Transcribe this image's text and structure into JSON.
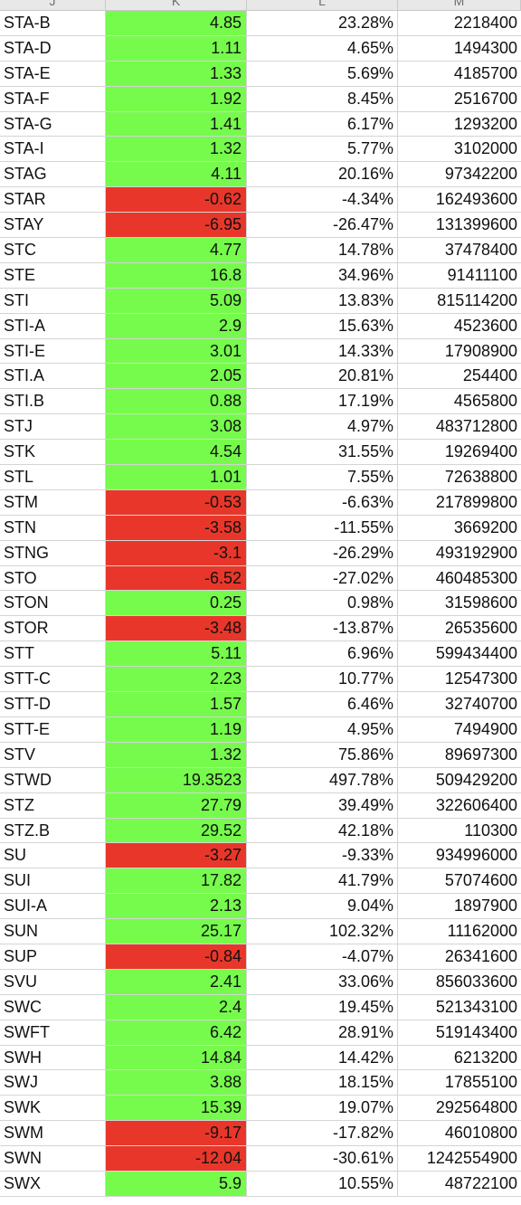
{
  "columns": [
    "J",
    "K",
    "L",
    "M"
  ],
  "rows": [
    {
      "ticker": "STA-B",
      "change": "4.85",
      "pct": "23.28%",
      "volume": "2218400",
      "status": "positive"
    },
    {
      "ticker": "STA-D",
      "change": "1.11",
      "pct": "4.65%",
      "volume": "1494300",
      "status": "positive"
    },
    {
      "ticker": "STA-E",
      "change": "1.33",
      "pct": "5.69%",
      "volume": "4185700",
      "status": "positive"
    },
    {
      "ticker": "STA-F",
      "change": "1.92",
      "pct": "8.45%",
      "volume": "2516700",
      "status": "positive"
    },
    {
      "ticker": "STA-G",
      "change": "1.41",
      "pct": "6.17%",
      "volume": "1293200",
      "status": "positive"
    },
    {
      "ticker": "STA-I",
      "change": "1.32",
      "pct": "5.77%",
      "volume": "3102000",
      "status": "positive"
    },
    {
      "ticker": "STAG",
      "change": "4.11",
      "pct": "20.16%",
      "volume": "97342200",
      "status": "positive"
    },
    {
      "ticker": "STAR",
      "change": "-0.62",
      "pct": "-4.34%",
      "volume": "162493600",
      "status": "negative"
    },
    {
      "ticker": "STAY",
      "change": "-6.95",
      "pct": "-26.47%",
      "volume": "131399600",
      "status": "negative"
    },
    {
      "ticker": "STC",
      "change": "4.77",
      "pct": "14.78%",
      "volume": "37478400",
      "status": "positive"
    },
    {
      "ticker": "STE",
      "change": "16.8",
      "pct": "34.96%",
      "volume": "91411100",
      "status": "positive"
    },
    {
      "ticker": "STI",
      "change": "5.09",
      "pct": "13.83%",
      "volume": "815114200",
      "status": "positive"
    },
    {
      "ticker": "STI-A",
      "change": "2.9",
      "pct": "15.63%",
      "volume": "4523600",
      "status": "positive"
    },
    {
      "ticker": "STI-E",
      "change": "3.01",
      "pct": "14.33%",
      "volume": "17908900",
      "status": "positive"
    },
    {
      "ticker": "STI.A",
      "change": "2.05",
      "pct": "20.81%",
      "volume": "254400",
      "status": "positive"
    },
    {
      "ticker": "STI.B",
      "change": "0.88",
      "pct": "17.19%",
      "volume": "4565800",
      "status": "positive"
    },
    {
      "ticker": "STJ",
      "change": "3.08",
      "pct": "4.97%",
      "volume": "483712800",
      "status": "positive"
    },
    {
      "ticker": "STK",
      "change": "4.54",
      "pct": "31.55%",
      "volume": "19269400",
      "status": "positive"
    },
    {
      "ticker": "STL",
      "change": "1.01",
      "pct": "7.55%",
      "volume": "72638800",
      "status": "positive"
    },
    {
      "ticker": "STM",
      "change": "-0.53",
      "pct": "-6.63%",
      "volume": "217899800",
      "status": "negative"
    },
    {
      "ticker": "STN",
      "change": "-3.58",
      "pct": "-11.55%",
      "volume": "3669200",
      "status": "negative"
    },
    {
      "ticker": "STNG",
      "change": "-3.1",
      "pct": "-26.29%",
      "volume": "493192900",
      "status": "negative"
    },
    {
      "ticker": "STO",
      "change": "-6.52",
      "pct": "-27.02%",
      "volume": "460485300",
      "status": "negative"
    },
    {
      "ticker": "STON",
      "change": "0.25",
      "pct": "0.98%",
      "volume": "31598600",
      "status": "positive"
    },
    {
      "ticker": "STOR",
      "change": "-3.48",
      "pct": "-13.87%",
      "volume": "26535600",
      "status": "negative"
    },
    {
      "ticker": "STT",
      "change": "5.11",
      "pct": "6.96%",
      "volume": "599434400",
      "status": "positive"
    },
    {
      "ticker": "STT-C",
      "change": "2.23",
      "pct": "10.77%",
      "volume": "12547300",
      "status": "positive"
    },
    {
      "ticker": "STT-D",
      "change": "1.57",
      "pct": "6.46%",
      "volume": "32740700",
      "status": "positive"
    },
    {
      "ticker": "STT-E",
      "change": "1.19",
      "pct": "4.95%",
      "volume": "7494900",
      "status": "positive"
    },
    {
      "ticker": "STV",
      "change": "1.32",
      "pct": "75.86%",
      "volume": "89697300",
      "status": "positive"
    },
    {
      "ticker": "STWD",
      "change": "19.3523",
      "pct": "497.78%",
      "volume": "509429200",
      "status": "positive"
    },
    {
      "ticker": "STZ",
      "change": "27.79",
      "pct": "39.49%",
      "volume": "322606400",
      "status": "positive"
    },
    {
      "ticker": "STZ.B",
      "change": "29.52",
      "pct": "42.18%",
      "volume": "110300",
      "status": "positive"
    },
    {
      "ticker": "SU",
      "change": "-3.27",
      "pct": "-9.33%",
      "volume": "934996000",
      "status": "negative"
    },
    {
      "ticker": "SUI",
      "change": "17.82",
      "pct": "41.79%",
      "volume": "57074600",
      "status": "positive"
    },
    {
      "ticker": "SUI-A",
      "change": "2.13",
      "pct": "9.04%",
      "volume": "1897900",
      "status": "positive"
    },
    {
      "ticker": "SUN",
      "change": "25.17",
      "pct": "102.32%",
      "volume": "11162000",
      "status": "positive"
    },
    {
      "ticker": "SUP",
      "change": "-0.84",
      "pct": "-4.07%",
      "volume": "26341600",
      "status": "negative"
    },
    {
      "ticker": "SVU",
      "change": "2.41",
      "pct": "33.06%",
      "volume": "856033600",
      "status": "positive"
    },
    {
      "ticker": "SWC",
      "change": "2.4",
      "pct": "19.45%",
      "volume": "521343100",
      "status": "positive"
    },
    {
      "ticker": "SWFT",
      "change": "6.42",
      "pct": "28.91%",
      "volume": "519143400",
      "status": "positive"
    },
    {
      "ticker": "SWH",
      "change": "14.84",
      "pct": "14.42%",
      "volume": "6213200",
      "status": "positive"
    },
    {
      "ticker": "SWJ",
      "change": "3.88",
      "pct": "18.15%",
      "volume": "17855100",
      "status": "positive"
    },
    {
      "ticker": "SWK",
      "change": "15.39",
      "pct": "19.07%",
      "volume": "292564800",
      "status": "positive"
    },
    {
      "ticker": "SWM",
      "change": "-9.17",
      "pct": "-17.82%",
      "volume": "46010800",
      "status": "negative"
    },
    {
      "ticker": "SWN",
      "change": "-12.04",
      "pct": "-30.61%",
      "volume": "1242554900",
      "status": "negative"
    },
    {
      "ticker": "SWX",
      "change": "5.9",
      "pct": "10.55%",
      "volume": "48722100",
      "status": "positive"
    }
  ],
  "colors": {
    "positive_fill": "#76fb4c",
    "negative_fill": "#e8372a"
  }
}
